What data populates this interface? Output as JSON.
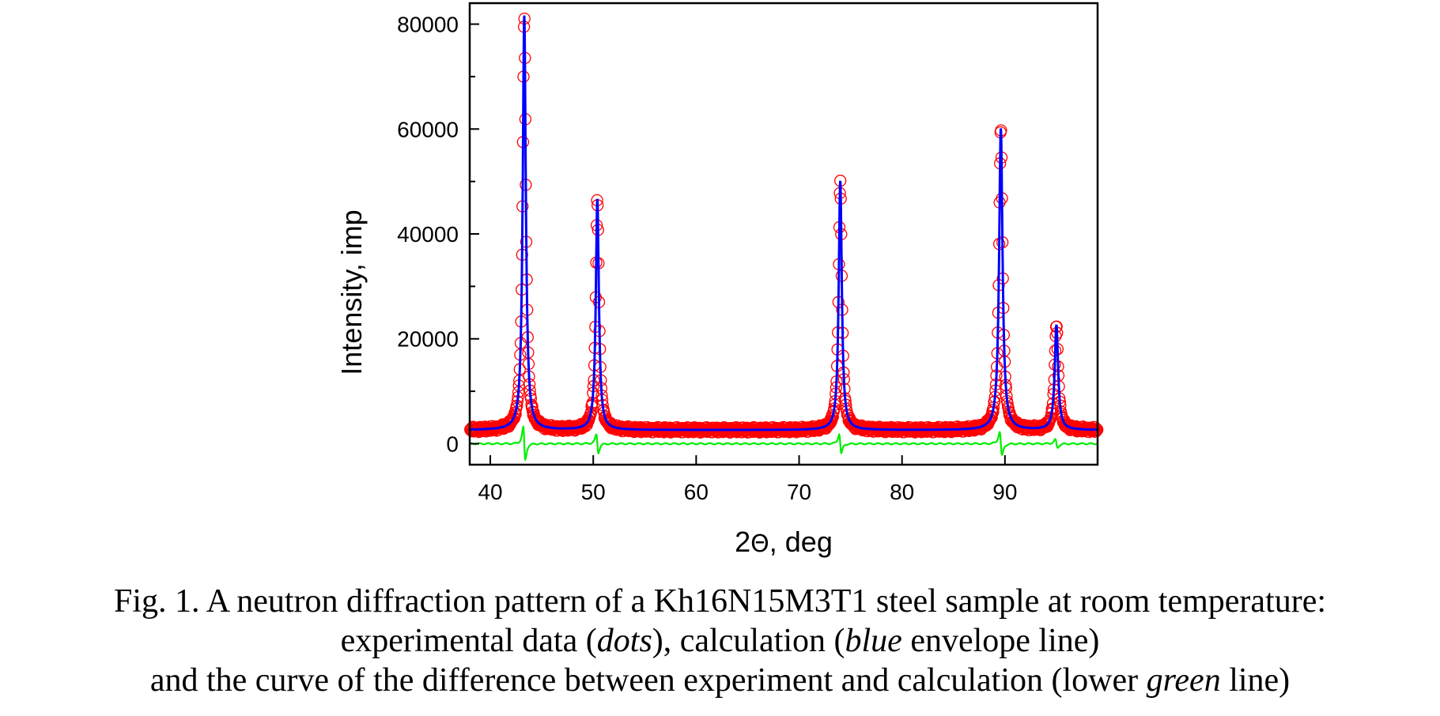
{
  "caption": {
    "line1": "Fig. 1. A neutron diffraction pattern of a Kh16N15M3T1 steel sample at room temperature:",
    "line2": {
      "pre": "experimental data (",
      "dots": "dots",
      "mid": "), calculation (",
      "blue": "blue",
      "post": " envelope line)"
    },
    "line3": {
      "pre": "and the curve of the difference between experiment and calculation (lower ",
      "green": "green",
      "post": " line)"
    }
  },
  "chart_data": {
    "type": "line",
    "xlabel_prefix": "2",
    "xlabel_symbol": "Θ",
    "xlabel_suffix": ", deg",
    "ylabel": "Intensity, imp",
    "xlim": [
      38,
      99
    ],
    "ylim": [
      -4000,
      84000
    ],
    "xticks": [
      40,
      50,
      60,
      70,
      80,
      90
    ],
    "yticks": [
      0,
      20000,
      40000,
      60000,
      80000
    ],
    "grid": false,
    "colors": {
      "observed": "#ff0000",
      "calculated": "#0000ff",
      "difference": "#00ee00"
    },
    "background": 2600,
    "peaks": [
      {
        "x": 43.3,
        "height": 79000,
        "width": 0.18
      },
      {
        "x": 50.4,
        "height": 44000,
        "width": 0.18
      },
      {
        "x": 74.0,
        "height": 47500,
        "width": 0.18
      },
      {
        "x": 89.6,
        "height": 57500,
        "width": 0.2
      },
      {
        "x": 95.0,
        "height": 20000,
        "width": 0.2
      }
    ],
    "series": [
      {
        "name": "dots"
      },
      {
        "name": "blue envelope line"
      },
      {
        "name": "lower green line"
      }
    ]
  }
}
